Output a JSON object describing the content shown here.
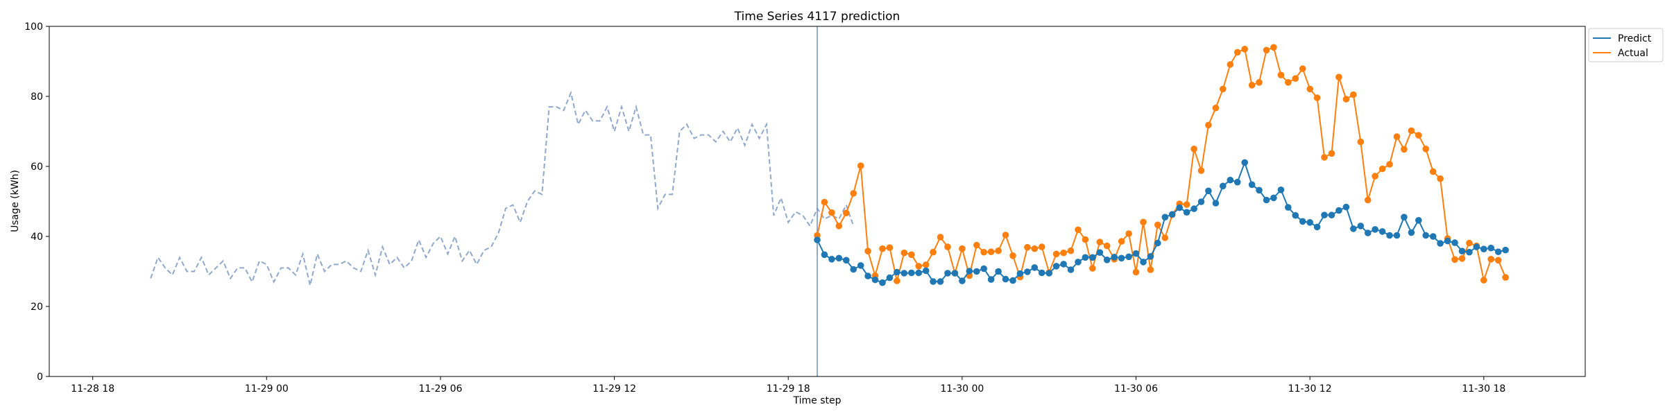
{
  "chart_data": {
    "type": "line",
    "title": "Time Series 4117 prediction",
    "xlabel": "Time step",
    "ylabel": "Usage (kWh)",
    "ylim": [
      0,
      100
    ],
    "xlim": [
      "2024-11-28T16:30",
      "2024-11-30T21:30"
    ],
    "x_tick_labels": [
      "11-28 18",
      "11-29 00",
      "11-29 06",
      "11-29 12",
      "11-29 18",
      "11-30 00",
      "11-30 06",
      "11-30 12",
      "11-30 18"
    ],
    "y_tick_labels": [
      "0",
      "20",
      "40",
      "60",
      "80",
      "100"
    ],
    "legend_position": "upper right outside",
    "grid": false,
    "forecast_start": "2024-11-29T19:00",
    "history": {
      "x_start": "2024-11-28T20:00",
      "step_minutes": 15,
      "style": "dashed",
      "color": "#8fa8cc",
      "values": [
        28,
        34,
        31,
        29,
        34,
        30,
        30,
        34,
        29,
        31,
        33,
        28,
        31,
        31,
        27,
        33,
        32,
        27,
        31,
        31,
        29,
        35,
        26,
        35,
        30,
        32,
        32,
        33,
        31,
        30,
        36,
        29,
        37,
        32,
        34,
        31,
        33,
        39,
        34,
        38,
        40,
        35,
        40,
        33,
        36,
        32,
        36,
        37,
        41,
        48,
        49,
        44,
        50,
        53,
        52,
        77,
        77,
        76,
        81,
        72,
        76,
        73,
        73,
        77,
        70,
        77,
        70,
        77,
        69,
        69,
        48,
        52,
        52,
        70,
        72,
        68,
        69,
        69,
        67,
        70,
        67,
        71,
        66,
        72,
        68,
        72,
        46,
        51,
        44,
        47,
        46,
        43,
        48,
        45,
        46,
        45,
        49,
        43
      ]
    },
    "series": [
      {
        "name": "Predict",
        "color": "#1f77b4",
        "x_start": "2024-11-29T19:00",
        "step_minutes": 15,
        "values": [
          39,
          34.8,
          33.5,
          33.8,
          33.2,
          30.6,
          31.7,
          28.7,
          27.6,
          26.8,
          28.2,
          29.8,
          29.5,
          29.6,
          29.6,
          30.2,
          27.1,
          27.1,
          29.5,
          29.5,
          27.3,
          30.1,
          30,
          30.8,
          27.7,
          30,
          27.8,
          27.4,
          29.4,
          29.9,
          31.1,
          29.6,
          29.5,
          31.5,
          32.1,
          30.5,
          32.7,
          34,
          34,
          35.4,
          33.3,
          34.1,
          33.8,
          34.2,
          35.1,
          32.7,
          34.3,
          38.1,
          45.5,
          46.3,
          48.2,
          46.9,
          47.9,
          49.9,
          53,
          49.5,
          54.4,
          56.1,
          55.5,
          61.1,
          54.8,
          53.2,
          50.4,
          51,
          53.3,
          48.3,
          46,
          44.3,
          44,
          42.7,
          46.1,
          46.1,
          47.4,
          48.4,
          42.2,
          43,
          41,
          42,
          41.4,
          40.3,
          40.3,
          45.5,
          41.1,
          44.6,
          40.3,
          40,
          38,
          38.7,
          38.2,
          35.8,
          35.5,
          37,
          36.4,
          36.7,
          35.6,
          36.1
        ]
      },
      {
        "name": "Actual",
        "color": "#ff7f0e",
        "x_start": "2024-11-29T19:00",
        "step_minutes": 15,
        "values": [
          40.3,
          49.8,
          46.8,
          43,
          46.7,
          52.3,
          60.2,
          35.8,
          28.8,
          36.5,
          36.8,
          27.3,
          35.3,
          34.8,
          31.5,
          31.9,
          35.5,
          39.8,
          37,
          29.5,
          36.5,
          28.8,
          37.5,
          35.5,
          35.6,
          35.9,
          40.4,
          34.5,
          28.4,
          36.9,
          36.5,
          37,
          29.7,
          35,
          35.3,
          35.9,
          41.9,
          39.1,
          30.9,
          38.4,
          37.3,
          33.5,
          38.6,
          40.8,
          29.8,
          44.1,
          30.5,
          43.3,
          39.6,
          46.2,
          49.3,
          49.1,
          65,
          58.8,
          71.8,
          76.7,
          82.1,
          89.1,
          92.6,
          93.5,
          83.2,
          84,
          93.2,
          94,
          86.1,
          84,
          85.1,
          87.9,
          82.1,
          79.6,
          62.6,
          63.7,
          85.5,
          79.2,
          80.5,
          67,
          50.4,
          57.2,
          59.3,
          60.6,
          68.5,
          64.9,
          70.2,
          68.9,
          65,
          58.5,
          56.5,
          39.4,
          33.4,
          33.7,
          38.1,
          37.3,
          27.5,
          33.5,
          33.2,
          28.3
        ]
      }
    ]
  }
}
